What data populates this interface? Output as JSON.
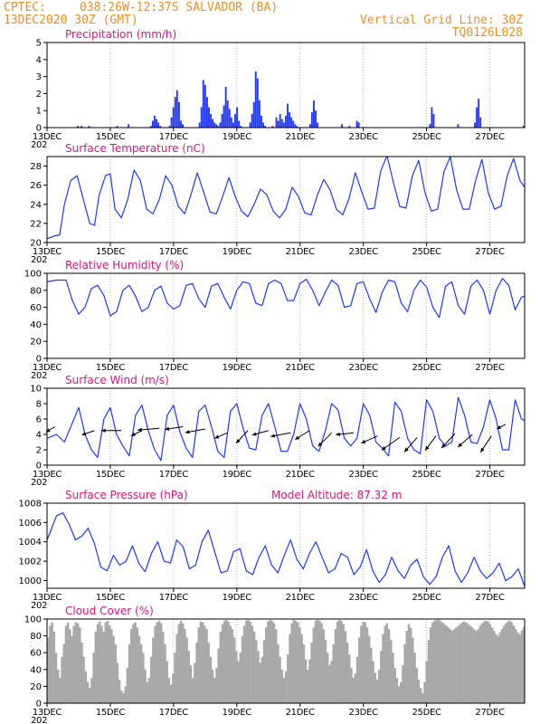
{
  "header": {
    "source": "CPTEC:",
    "location": "038:26W-12:37S  SALVADOR (BA)",
    "init": "13DEC2020 30Z (GMT)",
    "grid_note": "Vertical Grid Line: 30Z",
    "code": "TQ0126L028"
  },
  "x_axis": {
    "labels": [
      "13DEC",
      "15DEC",
      "17DEC",
      "19DEC",
      "21DEC",
      "23DEC",
      "25DEC",
      "27DEC"
    ],
    "sublabel": "202"
  },
  "chart_data": [
    {
      "id": "precip",
      "type": "bar",
      "title": "Precipitation (mm/h)",
      "ylim": [
        0,
        5
      ],
      "yticks": [
        0,
        1,
        2,
        3,
        4,
        5
      ],
      "color": "#1f36ff",
      "values": [
        0,
        0,
        0,
        0,
        0,
        0,
        0,
        0,
        0,
        0,
        0,
        0,
        0,
        0,
        0,
        0,
        0.1,
        0,
        0.1,
        0,
        0,
        0,
        0.1,
        0,
        0,
        0,
        0,
        0,
        0,
        0,
        0,
        0,
        0,
        0,
        0,
        0,
        0,
        0.1,
        0,
        0,
        0,
        0,
        0,
        0.2,
        0,
        0,
        0,
        0,
        0,
        0,
        0,
        0,
        0,
        0,
        0,
        0.1,
        0.4,
        0.7,
        0.5,
        0.3,
        0.1,
        0,
        0,
        0,
        0,
        0.1,
        0.6,
        1.2,
        1.8,
        2.2,
        1.5,
        0.4,
        0.2,
        0,
        0,
        0,
        0,
        0,
        0,
        0,
        0,
        0.3,
        1.2,
        2.8,
        2.5,
        1.8,
        1.2,
        0.8,
        0.5,
        0.3,
        0.2,
        0.1,
        0.3,
        0.8,
        1.3,
        2.4,
        1.6,
        1.1,
        0.6,
        0.3,
        0.8,
        1.2,
        0.4,
        0.1,
        0,
        0,
        0,
        0,
        0.3,
        0.8,
        1.5,
        3.3,
        2.9,
        1.6,
        0.7,
        0.3,
        0.1,
        0,
        0,
        0,
        0.1,
        0,
        0.6,
        0.4,
        0.8,
        0.5,
        0.3,
        0.7,
        1.4,
        0.9,
        0.6,
        0.4,
        0.2,
        0.1,
        0,
        0,
        0,
        0,
        0,
        0,
        0.2,
        0.9,
        1.6,
        1.0,
        0.3,
        0,
        0,
        0,
        0,
        0,
        0,
        0,
        0,
        0,
        0,
        0,
        0,
        0.2,
        0,
        0,
        0,
        0.1,
        0,
        0,
        0,
        0.4,
        0.3,
        0,
        0,
        0,
        0,
        0,
        0,
        0,
        0,
        0,
        0,
        0,
        0,
        0,
        0,
        0,
        0,
        0,
        0,
        0,
        0,
        0,
        0,
        0,
        0,
        0,
        0,
        0,
        0,
        0,
        0,
        0,
        0,
        0,
        0,
        0,
        0,
        0,
        0.2,
        1.2,
        0.8,
        0,
        0,
        0,
        0,
        0,
        0,
        0,
        0,
        0,
        0,
        0,
        0,
        0.2,
        0,
        0,
        0,
        0,
        0,
        0,
        0,
        0,
        0.3,
        1.2,
        1.7,
        0.6,
        0,
        0,
        0,
        0,
        0,
        0,
        0,
        0,
        0,
        0,
        0,
        0,
        0,
        0,
        0,
        0,
        0,
        0,
        0,
        0,
        0,
        0,
        0.1
      ]
    },
    {
      "id": "temp",
      "type": "line",
      "title": "Surface Temperature (nC)",
      "ylim": [
        20,
        29
      ],
      "yticks": [
        20,
        22,
        24,
        26,
        28
      ],
      "color": "#1f36ff",
      "x": [
        0,
        0.25,
        0.4,
        0.55,
        0.75,
        0.95,
        1.15,
        1.35,
        1.5,
        1.65,
        1.85,
        2.0,
        2.15,
        2.35,
        2.55,
        2.75,
        2.95,
        3.15,
        3.35,
        3.55,
        3.75,
        3.95,
        4.15,
        4.35,
        4.55,
        4.75,
        4.95,
        5.15,
        5.35,
        5.55,
        5.75,
        5.95,
        6.15,
        6.35,
        6.55,
        6.75,
        6.95,
        7.15,
        7.35,
        7.55,
        7.75,
        7.95,
        8.15,
        8.35,
        8.55,
        8.75,
        8.95,
        9.15,
        9.35,
        9.55,
        9.75,
        9.95,
        10.15,
        10.35,
        10.55,
        10.75,
        10.95,
        11.15,
        11.35,
        11.55,
        11.75,
        11.95,
        12.15,
        12.35,
        12.55,
        12.75,
        12.95,
        13.15,
        13.35,
        13.55,
        13.75,
        13.95,
        14.15,
        14.35,
        14.55,
        14.75,
        14.95,
        15.1
      ],
      "values": [
        20.4,
        20.7,
        20.8,
        24.0,
        26.5,
        27.0,
        24.5,
        22.0,
        21.8,
        25.0,
        27.0,
        27.2,
        23.5,
        22.6,
        24.5,
        27.6,
        26.5,
        23.5,
        23.0,
        24.5,
        27.0,
        26.0,
        23.8,
        23.0,
        25.0,
        27.3,
        25.3,
        23.2,
        23.0,
        24.8,
        26.8,
        24.8,
        23.3,
        22.7,
        24.0,
        25.6,
        25.0,
        23.3,
        22.6,
        23.5,
        25.8,
        24.8,
        23.1,
        22.9,
        25.0,
        26.6,
        25.5,
        23.5,
        22.9,
        24.6,
        27.3,
        25.3,
        23.5,
        23.6,
        27.5,
        29.1,
        26.3,
        23.8,
        23.6,
        27.0,
        28.6,
        25.2,
        23.3,
        23.5,
        27.4,
        29.0,
        25.5,
        23.5,
        23.5,
        26.5,
        28.7,
        25.2,
        23.5,
        23.8,
        27.0,
        28.8,
        26.5,
        25.8
      ]
    },
    {
      "id": "rh",
      "type": "line",
      "title": "Relative Humidity (%)",
      "ylim": [
        0,
        100
      ],
      "yticks": [
        0,
        20,
        40,
        60,
        80,
        100
      ],
      "color": "#1f36ff",
      "x": [
        0,
        0.3,
        0.6,
        0.8,
        1.0,
        1.2,
        1.4,
        1.6,
        1.8,
        2.0,
        2.2,
        2.4,
        2.6,
        2.8,
        3.0,
        3.2,
        3.4,
        3.6,
        3.8,
        4.0,
        4.2,
        4.4,
        4.6,
        4.8,
        5.0,
        5.2,
        5.4,
        5.6,
        5.8,
        6.0,
        6.2,
        6.4,
        6.6,
        6.8,
        7.0,
        7.2,
        7.4,
        7.6,
        7.8,
        8.0,
        8.2,
        8.4,
        8.6,
        8.8,
        9.0,
        9.2,
        9.4,
        9.6,
        9.8,
        10.0,
        10.2,
        10.4,
        10.6,
        10.8,
        11.0,
        11.2,
        11.4,
        11.6,
        11.8,
        12.0,
        12.2,
        12.4,
        12.6,
        12.8,
        13.0,
        13.2,
        13.4,
        13.6,
        13.8,
        14.0,
        14.2,
        14.4,
        14.6,
        14.8,
        15.0,
        15.1
      ],
      "values": [
        90,
        92,
        92,
        68,
        52,
        60,
        82,
        86,
        74,
        50,
        55,
        80,
        86,
        73,
        55,
        60,
        80,
        85,
        65,
        58,
        62,
        86,
        88,
        70,
        60,
        85,
        88,
        72,
        58,
        80,
        90,
        88,
        65,
        62,
        88,
        92,
        88,
        68,
        68,
        88,
        93,
        80,
        62,
        78,
        92,
        86,
        60,
        62,
        88,
        90,
        70,
        54,
        78,
        92,
        90,
        65,
        55,
        80,
        92,
        84,
        60,
        48,
        85,
        90,
        62,
        52,
        85,
        92,
        80,
        52,
        80,
        94,
        86,
        57,
        72,
        73
      ]
    },
    {
      "id": "wind",
      "type": "line",
      "title": "Surface Wind (m/s)",
      "ylim": [
        0,
        10
      ],
      "yticks": [
        0,
        2,
        4,
        6,
        8,
        10
      ],
      "color": "#1f36ff",
      "x": [
        0,
        0.3,
        0.55,
        0.8,
        1.0,
        1.2,
        1.4,
        1.6,
        1.8,
        2.0,
        2.2,
        2.4,
        2.6,
        2.8,
        3.0,
        3.2,
        3.4,
        3.6,
        3.8,
        4.0,
        4.2,
        4.4,
        4.6,
        4.8,
        5.0,
        5.2,
        5.4,
        5.6,
        5.8,
        6.0,
        6.2,
        6.4,
        6.6,
        6.8,
        7.0,
        7.2,
        7.4,
        7.6,
        7.8,
        8.0,
        8.2,
        8.4,
        8.6,
        8.8,
        9.0,
        9.2,
        9.4,
        9.6,
        9.8,
        10.0,
        10.2,
        10.4,
        10.6,
        10.8,
        11.0,
        11.2,
        11.4,
        11.6,
        11.8,
        12.0,
        12.2,
        12.4,
        12.6,
        12.8,
        13.0,
        13.2,
        13.4,
        13.6,
        13.8,
        14.0,
        14.2,
        14.4,
        14.6,
        14.8,
        15.0,
        15.1
      ],
      "values": [
        3.5,
        4.0,
        3.0,
        5.5,
        7.5,
        4.0,
        2.0,
        1.0,
        6.0,
        7.5,
        4.0,
        2.5,
        1.2,
        6.5,
        7.8,
        4.5,
        2.0,
        0.6,
        6.5,
        7.8,
        4.3,
        2.2,
        1.0,
        7.0,
        7.8,
        5.0,
        1.8,
        1.0,
        7.0,
        8.0,
        4.8,
        2.2,
        2.0,
        6.5,
        8.0,
        5.0,
        1.8,
        1.8,
        4.0,
        8.0,
        6.0,
        2.5,
        1.8,
        4.5,
        8.0,
        7.2,
        3.5,
        2.5,
        3.5,
        8.0,
        6.5,
        3.0,
        2.2,
        1.2,
        8.2,
        7.0,
        3.5,
        2.0,
        1.5,
        8.5,
        7.0,
        3.5,
        2.5,
        3.0,
        8.8,
        6.5,
        3.0,
        2.8,
        5.0,
        8.5,
        6.0,
        2.0,
        2.0,
        8.5,
        6.0,
        5.8
      ],
      "barbs": {
        "x": [
          0.25,
          1.5,
          2.35,
          3.0,
          3.55,
          4.3,
          5.0,
          5.7,
          6.35,
          7.0,
          7.7,
          8.3,
          9.0,
          9.7,
          10.45,
          11.15,
          11.7,
          12.3,
          12.9,
          13.45,
          14.05,
          14.5
        ],
        "y": [
          5.0,
          4.5,
          4.5,
          4.5,
          4.8,
          5.0,
          4.7,
          4.2,
          4.5,
          4.5,
          4.2,
          4.5,
          4.2,
          4.2,
          3.8,
          3.6,
          3.6,
          3.8,
          4.1,
          4.0,
          3.8,
          5.3
        ],
        "dx": [
          -10,
          -14,
          -22,
          -12,
          -24,
          -20,
          -22,
          -14,
          -13,
          -18,
          -22,
          -16,
          -15,
          -20,
          -18,
          -20,
          -14,
          -12,
          -15,
          -16,
          -12,
          -10
        ],
        "dy": [
          -6,
          -5,
          0,
          -6,
          -2,
          -3,
          -4,
          -6,
          -14,
          -5,
          -4,
          -10,
          -15,
          -2,
          -8,
          -14,
          -16,
          -16,
          -16,
          -14,
          -18,
          -5
        ]
      }
    },
    {
      "id": "pres",
      "type": "line",
      "title": "Surface Pressure (hPa)",
      "annotation": "Model Altitude: 87.32  m",
      "ylim": [
        999.2,
        1008
      ],
      "yticks": [
        1000,
        1002,
        1004,
        1006,
        1008
      ],
      "color": "#1f36ff",
      "x": [
        0,
        0.1,
        0.3,
        0.5,
        0.7,
        0.9,
        1.1,
        1.3,
        1.5,
        1.7,
        1.9,
        2.1,
        2.3,
        2.5,
        2.7,
        2.9,
        3.1,
        3.3,
        3.5,
        3.7,
        3.9,
        4.1,
        4.3,
        4.5,
        4.7,
        4.9,
        5.1,
        5.3,
        5.5,
        5.7,
        5.9,
        6.1,
        6.3,
        6.5,
        6.7,
        6.9,
        7.1,
        7.3,
        7.5,
        7.7,
        7.9,
        8.1,
        8.3,
        8.5,
        8.7,
        8.9,
        9.1,
        9.3,
        9.5,
        9.7,
        9.9,
        10.1,
        10.3,
        10.5,
        10.7,
        10.9,
        11.1,
        11.3,
        11.5,
        11.7,
        11.9,
        12.1,
        12.3,
        12.5,
        12.7,
        12.9,
        13.1,
        13.3,
        13.5,
        13.7,
        13.9,
        14.1,
        14.3,
        14.5,
        14.7,
        14.9,
        15.1
      ],
      "values": [
        1004.2,
        1005.0,
        1006.7,
        1007.0,
        1005.8,
        1004.2,
        1004.6,
        1005.4,
        1003.8,
        1001.4,
        1001.0,
        1002.6,
        1001.6,
        1002.0,
        1003.6,
        1001.8,
        1000.9,
        1002.8,
        1004.0,
        1002.0,
        1001.8,
        1004.2,
        1003.5,
        1001.2,
        1001.6,
        1004.0,
        1005.2,
        1003.0,
        1000.8,
        1001.0,
        1003.0,
        1003.3,
        1001.0,
        1000.6,
        1002.4,
        1003.6,
        1001.6,
        1000.8,
        1002.6,
        1004.2,
        1002.2,
        1001.2,
        1002.8,
        1004.0,
        1002.4,
        1000.8,
        1001.2,
        1002.8,
        1002.4,
        1000.6,
        1001.4,
        1003.2,
        1001.0,
        999.8,
        1000.6,
        1002.4,
        1001.0,
        1000.2,
        1001.6,
        1002.2,
        1000.4,
        999.6,
        1000.4,
        1002.4,
        1003.6,
        1001.0,
        999.8,
        1000.8,
        1002.4,
        1001.0,
        1000.2,
        1000.8,
        1001.8,
        1000.0,
        1000.4,
        1001.2,
        999.4
      ]
    },
    {
      "id": "cloud",
      "type": "area",
      "title": "Cloud Cover (%)",
      "ylim": [
        0,
        100
      ],
      "yticks": [
        0,
        20,
        40,
        60,
        80,
        100
      ],
      "color": "#a9a9a9",
      "values": [
        78,
        92,
        96,
        85,
        60,
        40,
        30,
        55,
        70,
        92,
        96,
        88,
        80,
        92,
        96,
        95,
        90,
        72,
        55,
        38,
        25,
        18,
        30,
        60,
        85,
        94,
        97,
        92,
        85,
        96,
        98,
        92,
        88,
        80,
        70,
        48,
        28,
        15,
        12,
        20,
        42,
        70,
        88,
        94,
        96,
        90,
        80,
        70,
        60,
        40,
        25,
        30,
        55,
        78,
        92,
        96,
        98,
        95,
        85,
        70,
        50,
        30,
        22,
        35,
        60,
        82,
        94,
        98,
        95,
        88,
        78,
        62,
        45,
        30,
        48,
        72,
        90,
        97,
        96,
        92,
        88,
        72,
        55,
        40,
        30,
        42,
        65,
        85,
        94,
        98,
        99,
        97,
        92,
        88,
        78,
        62,
        50,
        60,
        80,
        92,
        98,
        99,
        97,
        92,
        85,
        75,
        62,
        48,
        55,
        75,
        90,
        97,
        99,
        98,
        95,
        88,
        70,
        55,
        40,
        30,
        38,
        58,
        82,
        95,
        99,
        98,
        96,
        90,
        82,
        70,
        52,
        40,
        52,
        72,
        90,
        98,
        99,
        98,
        95,
        88,
        75,
        60,
        45,
        50,
        70,
        88,
        97,
        99,
        98,
        94,
        86,
        72,
        58,
        42,
        30,
        35,
        55,
        78,
        92,
        97,
        96,
        90,
        80,
        66,
        50,
        36,
        28,
        40,
        62,
        82,
        92,
        95,
        88,
        75,
        60,
        42,
        30,
        20,
        25,
        45,
        70,
        86,
        94,
        90,
        78,
        60,
        42,
        28,
        18,
        12,
        25,
        50,
        75,
        90,
        96,
        98,
        99,
        99,
        98,
        96,
        94,
        92,
        90,
        88,
        86,
        88,
        90,
        92,
        94,
        96,
        97,
        96,
        94,
        92,
        90,
        88,
        86,
        88,
        92,
        95,
        97,
        98,
        97,
        94,
        90,
        86,
        82,
        80,
        84,
        88,
        92,
        95,
        97,
        98,
        96,
        92,
        88,
        84,
        82,
        86,
        90
      ]
    }
  ]
}
